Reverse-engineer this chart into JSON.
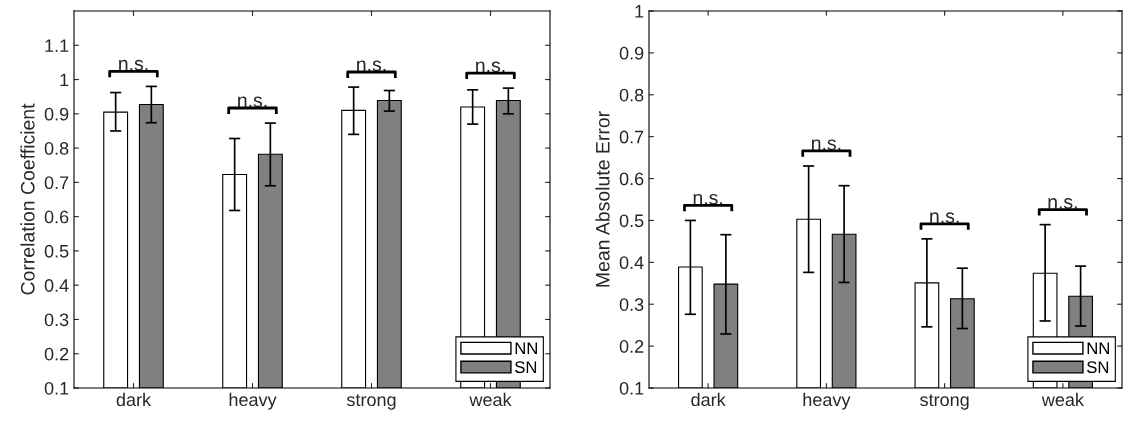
{
  "chart_data": [
    {
      "type": "bar",
      "ylabel": "Correlation Coefficient",
      "categories": [
        "dark",
        "heavy",
        "strong",
        "weak"
      ],
      "ylim": [
        0.1,
        1.2
      ],
      "yticks": [
        0.1,
        0.2,
        0.3,
        0.4,
        0.5,
        0.6,
        0.7,
        0.8,
        0.9,
        1,
        1.1
      ],
      "grid": false,
      "legend": "bottom right",
      "series": [
        {
          "name": "NN",
          "color": "#ffffff",
          "values": [
            0.905,
            0.723,
            0.91,
            0.92
          ],
          "errors": [
            [
              0.85,
              0.962
            ],
            [
              0.618,
              0.828
            ],
            [
              0.84,
              0.978
            ],
            [
              0.87,
              0.97
            ]
          ]
        },
        {
          "name": "SN",
          "color": "#808080",
          "values": [
            0.927,
            0.782,
            0.939,
            0.939
          ],
          "errors": [
            [
              0.874,
              0.98
            ],
            [
              0.69,
              0.873
            ],
            [
              0.908,
              0.968
            ],
            [
              0.9,
              0.975
            ]
          ]
        }
      ],
      "annotations": [
        "n.s.",
        "n.s.",
        "n.s.",
        "n.s."
      ]
    },
    {
      "type": "bar",
      "ylabel": "Mean Absolute Error",
      "categories": [
        "dark",
        "heavy",
        "strong",
        "weak"
      ],
      "ylim": [
        0.1,
        1
      ],
      "yticks": [
        0.1,
        0.2,
        0.3,
        0.4,
        0.5,
        0.6,
        0.7,
        0.8,
        0.9,
        1
      ],
      "grid": false,
      "legend": "bottom right",
      "series": [
        {
          "name": "NN",
          "color": "#ffffff",
          "values": [
            0.389,
            0.503,
            0.351,
            0.374
          ],
          "errors": [
            [
              0.276,
              0.5
            ],
            [
              0.376,
              0.63
            ],
            [
              0.246,
              0.456
            ],
            [
              0.26,
              0.49
            ]
          ]
        },
        {
          "name": "SN",
          "color": "#808080",
          "values": [
            0.348,
            0.467,
            0.313,
            0.319
          ],
          "errors": [
            [
              0.229,
              0.466
            ],
            [
              0.352,
              0.583
            ],
            [
              0.242,
              0.386
            ],
            [
              0.248,
              0.391
            ]
          ]
        }
      ],
      "annotations": [
        "n.s.",
        "n.s.",
        "n.s.",
        "n.s."
      ]
    }
  ]
}
